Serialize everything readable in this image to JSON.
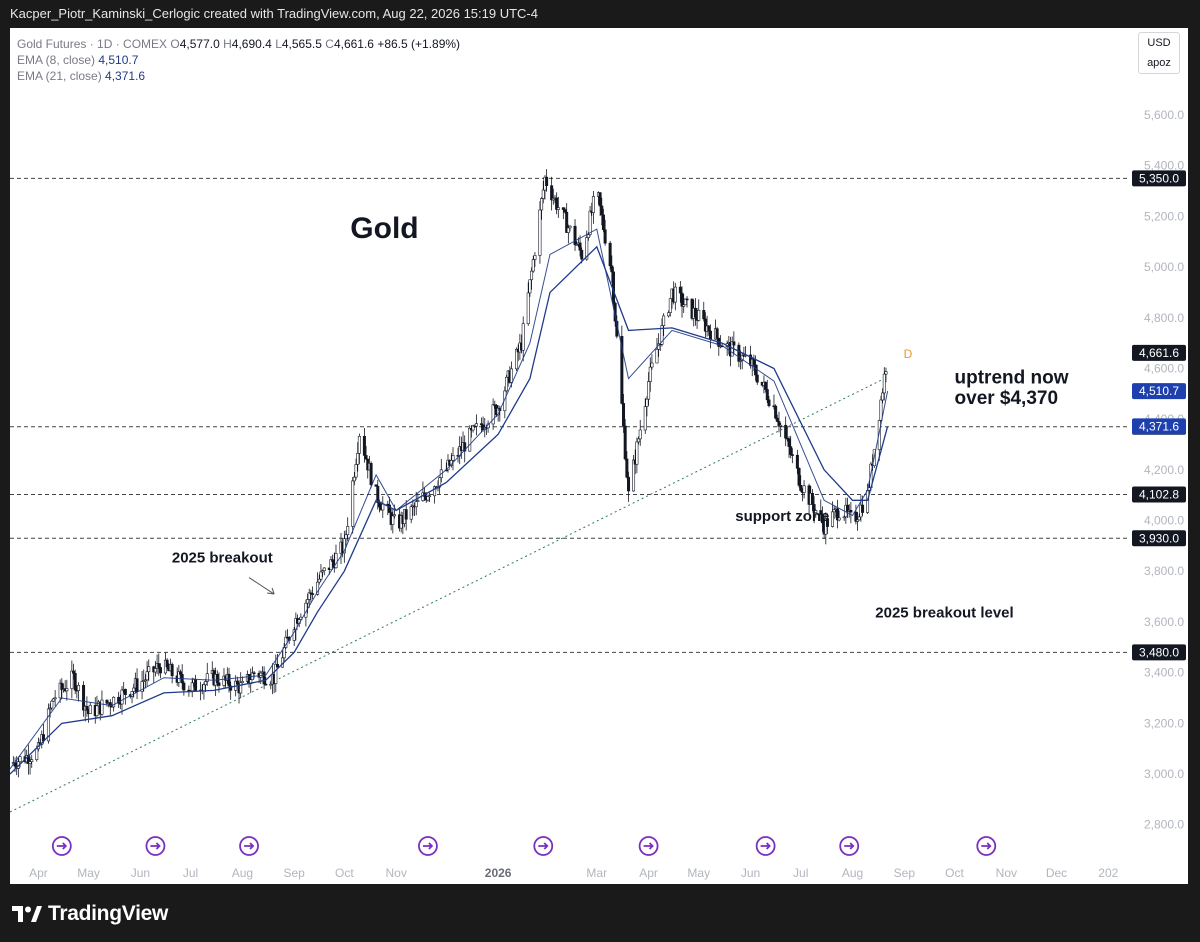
{
  "header": {
    "attribution": "Kacper_Piotr_Kaminski_Cerlogic created with TradingView.com, Aug 22, 2026 15:19 UTC-4"
  },
  "legend": {
    "symbol": "Gold Futures · 1D · COMEX",
    "open_label": "O",
    "open": "4,577.0",
    "high_label": "H",
    "high": "4,690.4",
    "low_label": "L",
    "low": "4,565.5",
    "close_label": "C",
    "close": "4,661.6",
    "change": "+86.5 (+1.89%)",
    "ema8_label": "EMA (8, close)",
    "ema8_value": "4,510.7",
    "ema21_label": "EMA (21, close)",
    "ema21_value": "4,371.6"
  },
  "scale_box": {
    "currency": "USD",
    "mode": "apoz"
  },
  "footer": {
    "brand": "TradingView"
  },
  "colors": {
    "candle": "#131722",
    "ema8": "#1e3a8a",
    "ema21": "#1e3a8a",
    "trendline": "#2e7d5b",
    "event_icon": "#7b2fbe",
    "price_tag_dark": "#131722",
    "price_tag_blue": "#1e40af",
    "d_marker": "#f0932b"
  },
  "chart_data": {
    "type": "candlestick",
    "title": "Gold",
    "y_axis": {
      "ticks": [
        "5,600.0",
        "5,400.0",
        "5,200.0",
        "5,000.0",
        "4,800.0",
        "4,600.0",
        "4,400.0",
        "4,200.0",
        "4,000.0",
        "3,800.0",
        "3,600.0",
        "3,400.0",
        "3,200.0",
        "3,000.0",
        "2,800.0"
      ],
      "tick_values": [
        5600,
        5400,
        5200,
        5000,
        4800,
        4600,
        4400,
        4200,
        4000,
        3800,
        3600,
        3400,
        3200,
        3000,
        2800
      ],
      "ylim": [
        2740,
        5780
      ],
      "position": "right"
    },
    "x_axis": {
      "labels": [
        "Apr",
        "May",
        "Jun",
        "Jul",
        "Aug",
        "Sep",
        "Oct",
        "Nov",
        "2026",
        "Mar",
        "Apr",
        "May",
        "Jun",
        "Jul",
        "Aug",
        "Sep",
        "Oct",
        "Nov",
        "Dec",
        "202"
      ],
      "bold_labels": [
        "2026"
      ],
      "x_dates": [
        "2025-04-01",
        "2025-05-01",
        "2025-06-01",
        "2025-07-01",
        "2025-08-01",
        "2025-09-01",
        "2025-10-01",
        "2025-11-01",
        "2026-01-01",
        "2026-03-01",
        "2026-04-01",
        "2026-05-01",
        "2026-06-01",
        "2026-07-01",
        "2026-08-01",
        "2026-09-01",
        "2026-10-01",
        "2026-11-01",
        "2026-12-01",
        "2027-01-01"
      ]
    },
    "horizontal_levels": [
      {
        "value": 5350,
        "label": "5,350.0",
        "style": "dashed"
      },
      {
        "value": 4370,
        "label": "4,370.0",
        "style": "dashed"
      },
      {
        "value": 4102.8,
        "label": "4,102.8",
        "style": "dashed"
      },
      {
        "value": 3930,
        "label": "3,930.0",
        "style": "dashed"
      },
      {
        "value": 3480,
        "label": "3,480.0",
        "style": "dashed"
      }
    ],
    "price_tags": [
      {
        "value": 4661.6,
        "label": "4,661.6",
        "kind": "last"
      },
      {
        "value": 4510.7,
        "label": "4,510.7",
        "kind": "ema8"
      },
      {
        "value": 4371.6,
        "label": "4,371.6",
        "kind": "ema21"
      }
    ],
    "trendline": {
      "from": {
        "date": "2025-03-15",
        "value": 2850
      },
      "to": {
        "date": "2026-08-20",
        "value": 4560
      },
      "style": "dotted"
    },
    "annotations": [
      {
        "text": "2025 breakout",
        "date": "2025-07-20",
        "value": 3835
      },
      {
        "text": "support zone",
        "date": "2026-06-20",
        "value": 3998
      },
      {
        "text": "2025 breakout level",
        "date": "2026-09-25",
        "value": 3618
      },
      {
        "text": "uptrend now",
        "date": "2026-10-01",
        "value": 4540
      },
      {
        "text": "over $4,370",
        "date": "2026-10-01",
        "value": 4460
      }
    ],
    "series": [
      {
        "name": "Gold Futures",
        "kind": "ohlc_path",
        "dates": [
          "2025-03-15",
          "2025-04-01",
          "2025-04-10",
          "2025-04-22",
          "2025-05-01",
          "2025-05-15",
          "2025-06-01",
          "2025-06-13",
          "2025-07-01",
          "2025-07-15",
          "2025-08-01",
          "2025-08-08",
          "2025-08-20",
          "2025-09-01",
          "2025-09-15",
          "2025-10-01",
          "2025-10-10",
          "2025-10-20",
          "2025-11-01",
          "2025-11-12",
          "2025-12-01",
          "2025-12-15",
          "2026-01-01",
          "2026-01-15",
          "2026-01-29",
          "2026-02-05",
          "2026-02-20",
          "2026-03-01",
          "2026-03-10",
          "2026-03-20",
          "2026-04-01",
          "2026-04-15",
          "2026-05-01",
          "2026-05-15",
          "2026-06-01",
          "2026-06-15",
          "2026-07-01",
          "2026-07-15",
          "2026-07-25",
          "2026-08-01",
          "2026-08-10",
          "2026-08-22"
        ],
        "close": [
          3040,
          3090,
          3300,
          3380,
          3240,
          3290,
          3360,
          3430,
          3340,
          3380,
          3340,
          3400,
          3380,
          3600,
          3760,
          3900,
          4350,
          4100,
          3980,
          4050,
          4200,
          4330,
          4450,
          4700,
          5350,
          5250,
          5050,
          5300,
          4980,
          4100,
          4550,
          4900,
          4800,
          4700,
          4620,
          4450,
          4150,
          3980,
          4050,
          3995,
          4100,
          4661.6
        ]
      },
      {
        "name": "EMA (8, close)",
        "dates": [
          "2025-03-15",
          "2025-04-15",
          "2025-05-15",
          "2025-06-15",
          "2025-07-15",
          "2025-08-15",
          "2025-09-01",
          "2025-09-15",
          "2025-10-01",
          "2025-10-20",
          "2025-11-01",
          "2025-12-01",
          "2026-01-01",
          "2026-01-20",
          "2026-02-01",
          "2026-03-01",
          "2026-03-20",
          "2026-04-15",
          "2026-05-15",
          "2026-06-15",
          "2026-07-15",
          "2026-08-01",
          "2026-08-10",
          "2026-08-22"
        ],
        "values": [
          3020,
          3300,
          3270,
          3380,
          3370,
          3390,
          3560,
          3720,
          3880,
          4180,
          4040,
          4200,
          4420,
          4700,
          5050,
          5150,
          4560,
          4750,
          4690,
          4550,
          4080,
          4020,
          4120,
          4510.7
        ]
      },
      {
        "name": "EMA (21, close)",
        "dates": [
          "2025-03-15",
          "2025-04-15",
          "2025-05-15",
          "2025-06-15",
          "2025-07-15",
          "2025-08-15",
          "2025-09-01",
          "2025-09-15",
          "2025-10-01",
          "2025-10-20",
          "2025-11-01",
          "2025-12-01",
          "2026-01-01",
          "2026-01-20",
          "2026-02-01",
          "2026-03-01",
          "2026-03-20",
          "2026-04-15",
          "2026-05-15",
          "2026-06-15",
          "2026-07-15",
          "2026-08-01",
          "2026-08-10",
          "2026-08-22"
        ],
        "values": [
          3000,
          3200,
          3230,
          3320,
          3330,
          3370,
          3480,
          3640,
          3800,
          4080,
          4040,
          4150,
          4340,
          4560,
          4900,
          5080,
          4750,
          4760,
          4700,
          4600,
          4200,
          4080,
          4080,
          4371.6
        ]
      }
    ],
    "event_icon_dates": [
      "2025-04-15",
      "2025-06-10",
      "2025-08-05",
      "2025-11-20",
      "2026-01-28",
      "2026-04-01",
      "2026-06-10",
      "2026-07-30",
      "2026-10-20"
    ],
    "last_bar_marker": "D"
  }
}
